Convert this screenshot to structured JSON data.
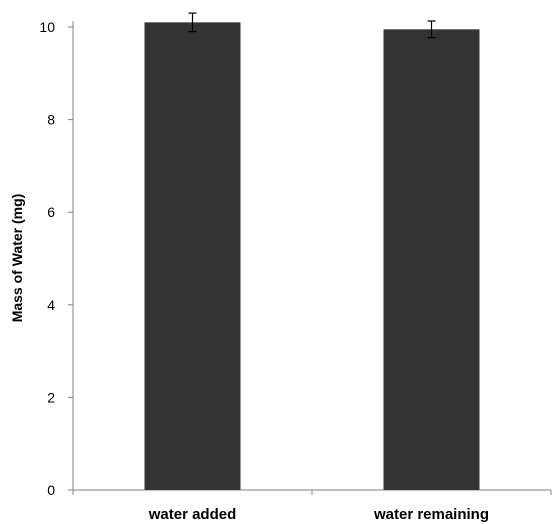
{
  "chart_data": {
    "type": "bar",
    "title": "",
    "xlabel": "",
    "ylabel": "Mass of Water (mg)",
    "categories": [
      "water added",
      "water remaining"
    ],
    "values": [
      10.1,
      9.95
    ],
    "error": [
      0.2,
      0.18
    ],
    "ylim": [
      0,
      10
    ],
    "yticks": [
      0,
      2,
      4,
      6,
      8,
      10
    ],
    "grid": false,
    "legend": "none",
    "colors": {
      "bar": "#333333",
      "axis": "#808080",
      "error_bar": "#000000"
    }
  }
}
